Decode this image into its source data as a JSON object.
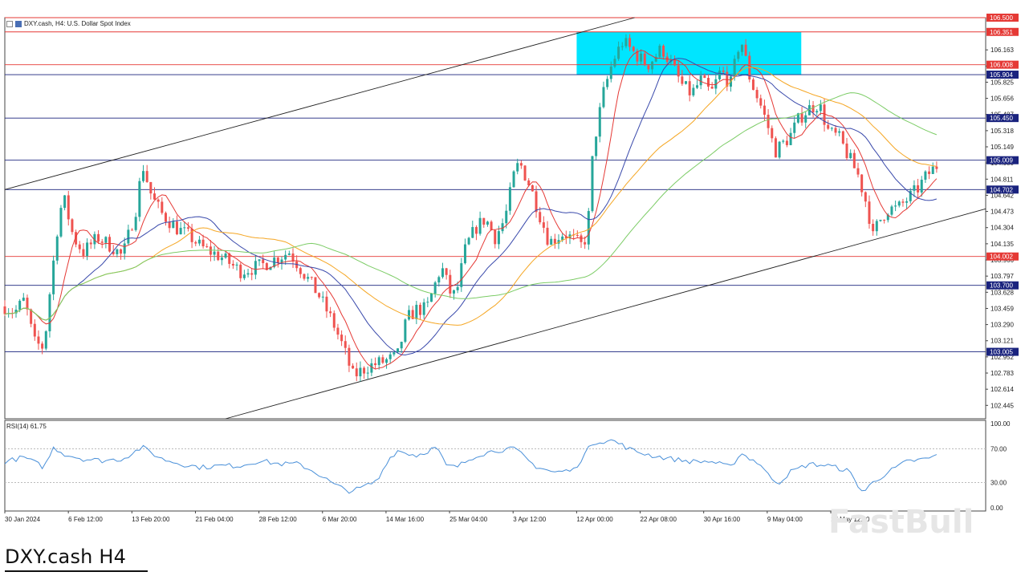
{
  "header": {
    "symbol_label": "DXY.cash, H4:  U.S. Dollar Spot Index"
  },
  "rsi_label": "RSI(14) 61.75",
  "caption": "DXY.cash H4",
  "watermark": "FastBull",
  "colors": {
    "bull": "#26a69a",
    "bear": "#ef5350",
    "ma_fast": "#e53935",
    "ma_mid": "#3949ab",
    "ma_slow": "#f5a623",
    "ma_long": "#7ccc66",
    "rsi": "#4a90d9",
    "resistance_zone": "#00e5ff",
    "level_red": "#e53935",
    "level_blue": "#1a237e"
  },
  "chart_data": {
    "type": "candlestick",
    "symbol": "DXY.cash",
    "timeframe": "H4",
    "y_axis_ticks": [
      106.163,
      105.994,
      105.825,
      105.656,
      105.487,
      105.318,
      105.149,
      104.98,
      104.811,
      104.642,
      104.473,
      104.304,
      104.135,
      103.966,
      103.797,
      103.628,
      103.459,
      103.29,
      103.121,
      102.952,
      102.783,
      102.614,
      102.445
    ],
    "ylim": [
      102.305,
      106.5
    ],
    "x_axis_labels": [
      "30 Jan 2024",
      "6 Feb 12:00",
      "13 Feb 20:00",
      "21 Feb 04:00",
      "28 Feb 12:00",
      "6 Mar 20:00",
      "14 Mar 16:00",
      "25 Mar 04:00",
      "3 Apr 12:00",
      "12 Apr 00:00",
      "22 Apr 08:00",
      "30 Apr 16:00",
      "9 May 04:00",
      "17 May 12:00"
    ],
    "horizontal_levels": [
      {
        "value": 106.5,
        "label": "106.500",
        "color": "red"
      },
      {
        "value": 106.351,
        "label": "106.351",
        "color": "red"
      },
      {
        "value": 106.008,
        "label": "106.008",
        "color": "red"
      },
      {
        "value": 105.904,
        "label": "105.904",
        "color": "blue"
      },
      {
        "value": 105.45,
        "label": "105.450",
        "color": "blue"
      },
      {
        "value": 105.009,
        "label": "105.009",
        "color": "blue"
      },
      {
        "value": 104.702,
        "label": "104.702",
        "color": "blue"
      },
      {
        "value": 104.002,
        "label": "104.002",
        "color": "red"
      },
      {
        "value": 103.7,
        "label": "103.700",
        "color": "blue"
      },
      {
        "value": 103.005,
        "label": "103.005",
        "color": "blue"
      }
    ],
    "resistance_zone": {
      "top": 106.351,
      "bottom": 105.904,
      "from_bar": 0.583,
      "to_bar": 0.812
    },
    "channel_lines": [
      {
        "name": "upper",
        "points": [
          [
            0.0,
            104.702
          ],
          [
            0.66,
            106.55
          ]
        ]
      },
      {
        "name": "lower",
        "points": [
          [
            0.225,
            102.305
          ],
          [
            1.05,
            104.642
          ]
        ]
      }
    ],
    "close_anchors": [
      [
        0,
        103.48
      ],
      [
        0.01,
        103.42
      ],
      [
        0.02,
        103.55
      ],
      [
        0.03,
        103.1
      ],
      [
        0.04,
        103.05
      ],
      [
        0.045,
        103.55
      ],
      [
        0.055,
        104.42
      ],
      [
        0.06,
        104.62
      ],
      [
        0.07,
        104.2
      ],
      [
        0.08,
        104.05
      ],
      [
        0.095,
        104.2
      ],
      [
        0.11,
        104.1
      ],
      [
        0.12,
        104.0
      ],
      [
        0.135,
        104.55
      ],
      [
        0.14,
        104.98
      ],
      [
        0.15,
        104.62
      ],
      [
        0.16,
        104.45
      ],
      [
        0.175,
        104.3
      ],
      [
        0.19,
        104.2
      ],
      [
        0.2,
        104.1
      ],
      [
        0.22,
        104.0
      ],
      [
        0.24,
        103.85
      ],
      [
        0.26,
        103.9
      ],
      [
        0.28,
        104.0
      ],
      [
        0.29,
        104.05
      ],
      [
        0.3,
        103.9
      ],
      [
        0.31,
        103.75
      ],
      [
        0.32,
        103.6
      ],
      [
        0.335,
        103.3
      ],
      [
        0.345,
        103.05
      ],
      [
        0.355,
        102.75
      ],
      [
        0.37,
        102.85
      ],
      [
        0.385,
        102.9
      ],
      [
        0.4,
        102.95
      ],
      [
        0.41,
        103.35
      ],
      [
        0.42,
        103.45
      ],
      [
        0.43,
        103.45
      ],
      [
        0.445,
        103.9
      ],
      [
        0.455,
        103.6
      ],
      [
        0.46,
        103.6
      ],
      [
        0.47,
        104.1
      ],
      [
        0.48,
        104.3
      ],
      [
        0.49,
        104.4
      ],
      [
        0.5,
        104.2
      ],
      [
        0.51,
        104.4
      ],
      [
        0.52,
        104.9
      ],
      [
        0.525,
        104.98
      ],
      [
        0.535,
        104.75
      ],
      [
        0.545,
        104.45
      ],
      [
        0.555,
        104.15
      ],
      [
        0.57,
        104.25
      ],
      [
        0.59,
        104.1
      ],
      [
        0.595,
        104.4
      ],
      [
        0.6,
        105.15
      ],
      [
        0.61,
        105.7
      ],
      [
        0.62,
        106.05
      ],
      [
        0.63,
        106.25
      ],
      [
        0.64,
        106.15
      ],
      [
        0.655,
        106.0
      ],
      [
        0.67,
        106.18
      ],
      [
        0.68,
        106.0
      ],
      [
        0.69,
        105.8
      ],
      [
        0.7,
        105.7
      ],
      [
        0.71,
        105.85
      ],
      [
        0.72,
        105.7
      ],
      [
        0.73,
        105.95
      ],
      [
        0.74,
        105.8
      ],
      [
        0.75,
        106.3
      ],
      [
        0.76,
        105.85
      ],
      [
        0.77,
        105.6
      ],
      [
        0.78,
        105.3
      ],
      [
        0.785,
        105.1
      ],
      [
        0.8,
        105.25
      ],
      [
        0.81,
        105.45
      ],
      [
        0.82,
        105.55
      ],
      [
        0.83,
        105.6
      ],
      [
        0.84,
        105.3
      ],
      [
        0.85,
        105.25
      ],
      [
        0.86,
        105.05
      ],
      [
        0.87,
        104.85
      ],
      [
        0.88,
        104.5
      ],
      [
        0.885,
        104.2
      ],
      [
        0.89,
        104.35
      ],
      [
        0.9,
        104.5
      ],
      [
        0.91,
        104.5
      ],
      [
        0.92,
        104.6
      ],
      [
        0.93,
        104.7
      ],
      [
        0.94,
        104.85
      ],
      [
        0.95,
        104.95
      ]
    ],
    "rsi": {
      "period": 14,
      "value": 61.75,
      "levels": [
        70,
        30
      ],
      "y_ticks": [
        "100.00",
        "70.00",
        "30.00",
        "0.00"
      ],
      "anchors": [
        [
          0,
          55
        ],
        [
          0.02,
          60
        ],
        [
          0.04,
          48
        ],
        [
          0.05,
          72
        ],
        [
          0.06,
          64
        ],
        [
          0.08,
          58
        ],
        [
          0.1,
          56
        ],
        [
          0.12,
          58
        ],
        [
          0.14,
          72
        ],
        [
          0.16,
          58
        ],
        [
          0.18,
          52
        ],
        [
          0.2,
          48
        ],
        [
          0.22,
          50
        ],
        [
          0.24,
          50
        ],
        [
          0.26,
          56
        ],
        [
          0.28,
          52
        ],
        [
          0.3,
          52
        ],
        [
          0.32,
          40
        ],
        [
          0.335,
          28
        ],
        [
          0.35,
          20
        ],
        [
          0.36,
          22
        ],
        [
          0.38,
          32
        ],
        [
          0.39,
          56
        ],
        [
          0.4,
          68
        ],
        [
          0.42,
          62
        ],
        [
          0.44,
          72
        ],
        [
          0.45,
          50
        ],
        [
          0.46,
          48
        ],
        [
          0.48,
          62
        ],
        [
          0.5,
          68
        ],
        [
          0.52,
          70
        ],
        [
          0.54,
          50
        ],
        [
          0.56,
          42
        ],
        [
          0.58,
          45
        ],
        [
          0.6,
          78
        ],
        [
          0.62,
          80
        ],
        [
          0.64,
          68
        ],
        [
          0.66,
          62
        ],
        [
          0.68,
          58
        ],
        [
          0.7,
          55
        ],
        [
          0.72,
          55
        ],
        [
          0.74,
          48
        ],
        [
          0.75,
          65
        ],
        [
          0.77,
          52
        ],
        [
          0.78,
          36
        ],
        [
          0.79,
          30
        ],
        [
          0.8,
          42
        ],
        [
          0.82,
          52
        ],
        [
          0.84,
          50
        ],
        [
          0.86,
          44
        ],
        [
          0.875,
          18
        ],
        [
          0.885,
          30
        ],
        [
          0.9,
          42
        ],
        [
          0.92,
          55
        ],
        [
          0.94,
          58
        ],
        [
          0.95,
          62
        ]
      ]
    }
  }
}
